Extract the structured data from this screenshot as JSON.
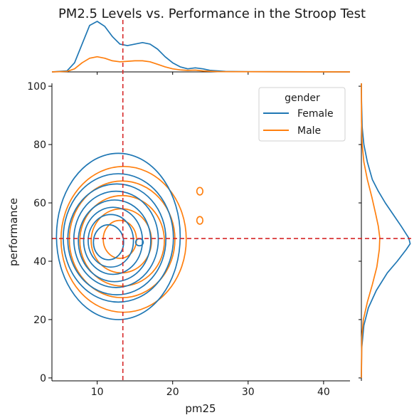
{
  "chart_data": {
    "type": "kde-joint",
    "title": "PM2.5 Levels vs. Performance in the Stroop Test",
    "xlabel": "pm25",
    "ylabel": "performance",
    "xlim": [
      4,
      43.5
    ],
    "ylim": [
      -1,
      101
    ],
    "x_ticks": [
      10,
      20,
      30,
      40
    ],
    "y_ticks": [
      0,
      20,
      40,
      60,
      80,
      100
    ],
    "grid": false,
    "legend": {
      "title": "gender",
      "placement": "top-right"
    },
    "reference_lines": {
      "pm25": 13.4,
      "performance": 47.8
    },
    "colors": {
      "Female": "#1f77b4",
      "Male": "#ff7f0e",
      "reference": "#d62728"
    },
    "series": [
      {
        "name": "Female",
        "center": [
          12.8,
          48
        ],
        "contours": [
          {
            "rx": 8.2,
            "ry": 28.5,
            "cx": 12.8,
            "cy": 48.5
          },
          {
            "rx": 7.3,
            "ry": 22.0,
            "cx": 12.8,
            "cy": 48.0
          },
          {
            "rx": 6.5,
            "ry": 19.0,
            "cx": 12.6,
            "cy": 47.5
          },
          {
            "rx": 5.6,
            "ry": 16.5,
            "cx": 12.5,
            "cy": 47.5
          },
          {
            "rx": 4.8,
            "ry": 14.0,
            "cx": 12.3,
            "cy": 47.0
          },
          {
            "rx": 3.9,
            "ry": 11.5,
            "cx": 12.1,
            "cy": 47.0
          },
          {
            "rx": 3.0,
            "ry": 9.0,
            "cx": 11.8,
            "cy": 47.0
          },
          {
            "rx": 2.0,
            "ry": 6.0,
            "cx": 11.5,
            "cy": 46.5
          },
          {
            "rx": 0.5,
            "ry": 1.2,
            "cx": 15.6,
            "cy": 46.5
          }
        ],
        "marginal_x": [
          [
            4,
            0
          ],
          [
            6,
            0.02
          ],
          [
            7,
            0.18
          ],
          [
            8,
            0.55
          ],
          [
            9,
            0.92
          ],
          [
            10,
            1.0
          ],
          [
            11,
            0.9
          ],
          [
            12,
            0.7
          ],
          [
            13,
            0.55
          ],
          [
            14,
            0.52
          ],
          [
            15,
            0.55
          ],
          [
            16,
            0.58
          ],
          [
            17,
            0.55
          ],
          [
            18,
            0.45
          ],
          [
            19,
            0.3
          ],
          [
            20,
            0.18
          ],
          [
            21,
            0.1
          ],
          [
            22,
            0.06
          ],
          [
            23,
            0.08
          ],
          [
            24,
            0.06
          ],
          [
            25,
            0.03
          ],
          [
            27,
            0.01
          ],
          [
            30,
            0.004
          ],
          [
            43.5,
            0
          ]
        ],
        "marginal_y": [
          [
            0,
            0
          ],
          [
            10,
            0.005
          ],
          [
            18,
            0.05
          ],
          [
            24,
            0.14
          ],
          [
            30,
            0.3
          ],
          [
            36,
            0.52
          ],
          [
            40,
            0.72
          ],
          [
            44,
            0.9
          ],
          [
            46,
            0.98
          ],
          [
            48,
            0.95
          ],
          [
            52,
            0.8
          ],
          [
            56,
            0.64
          ],
          [
            60,
            0.48
          ],
          [
            64,
            0.34
          ],
          [
            68,
            0.22
          ],
          [
            74,
            0.12
          ],
          [
            80,
            0.05
          ],
          [
            86,
            0.015
          ],
          [
            95,
            0.003
          ],
          [
            101,
            0
          ]
        ]
      },
      {
        "name": "Male",
        "center": [
          13.5,
          47
        ],
        "contours": [
          {
            "rx": 8.3,
            "ry": 25.0,
            "cx": 13.5,
            "cy": 47.5
          },
          {
            "rx": 7.0,
            "ry": 20.0,
            "cx": 13.3,
            "cy": 47.5
          },
          {
            "rx": 5.6,
            "ry": 15.5,
            "cx": 13.3,
            "cy": 47.0
          },
          {
            "rx": 4.0,
            "ry": 11.0,
            "cx": 13.2,
            "cy": 47.0
          },
          {
            "rx": 2.2,
            "ry": 6.5,
            "cx": 13.0,
            "cy": 47.5
          },
          {
            "rx": 0.4,
            "ry": 1.3,
            "cx": 23.6,
            "cy": 64.0
          },
          {
            "rx": 0.4,
            "ry": 1.3,
            "cx": 23.6,
            "cy": 54.0
          }
        ],
        "marginal_x": [
          [
            4,
            0
          ],
          [
            6,
            0.01
          ],
          [
            7,
            0.06
          ],
          [
            8,
            0.18
          ],
          [
            9,
            0.27
          ],
          [
            10,
            0.3
          ],
          [
            11,
            0.27
          ],
          [
            12,
            0.22
          ],
          [
            13,
            0.2
          ],
          [
            14,
            0.21
          ],
          [
            15,
            0.22
          ],
          [
            16,
            0.22
          ],
          [
            17,
            0.2
          ],
          [
            18,
            0.15
          ],
          [
            19,
            0.1
          ],
          [
            20,
            0.06
          ],
          [
            21,
            0.04
          ],
          [
            22,
            0.03
          ],
          [
            23,
            0.035
          ],
          [
            24,
            0.02
          ],
          [
            26,
            0.005
          ],
          [
            43.5,
            0
          ]
        ],
        "marginal_y": [
          [
            0,
            0
          ],
          [
            14,
            0.01
          ],
          [
            20,
            0.04
          ],
          [
            26,
            0.12
          ],
          [
            32,
            0.22
          ],
          [
            38,
            0.31
          ],
          [
            44,
            0.36
          ],
          [
            48,
            0.37
          ],
          [
            52,
            0.34
          ],
          [
            56,
            0.29
          ],
          [
            62,
            0.21
          ],
          [
            68,
            0.12
          ],
          [
            74,
            0.05
          ],
          [
            80,
            0.015
          ],
          [
            88,
            0.003
          ],
          [
            101,
            0
          ]
        ]
      }
    ]
  }
}
